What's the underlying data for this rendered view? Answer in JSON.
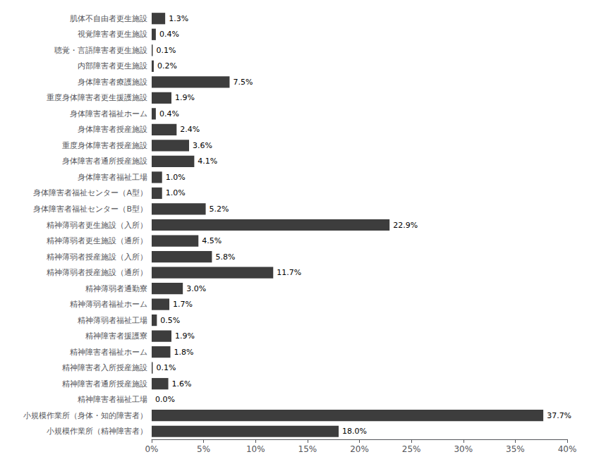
{
  "chart_data": {
    "type": "bar",
    "orientation": "horizontal",
    "categories": [
      "肌体不自由者更生施設",
      "視覚障害者更生施設",
      "聴覚・言語障害者更生施設",
      "内部障害者更生施設",
      "身体障害者療護施設",
      "重度身体障害者更生援護施設",
      "身体障害者福祉ホーム",
      "身体障害者授産施設",
      "重度身体障害者授産施設",
      "身体障害者通所授産施設",
      "身体障害者福祉工場",
      "身体障害者福祉センター（A型）",
      "身体障害者福祉センター（B型）",
      "精神薄弱者更生施設（入所）",
      "精神薄弱者更生施設（通所）",
      "精神薄弱者授産施設（入所）",
      "精神薄弱者授産施設（通所）",
      "精神薄弱者通勤寮",
      "精神薄弱者福祉ホーム",
      "精神薄弱者福祉工場",
      "精神障害者援護寮",
      "精神障害者福祉ホーム",
      "精神障害者入所授産施設",
      "精神障害者通所授産施設",
      "精神障害者福祉工場",
      "小規模作業所（身体・知的障害者）",
      "小規模作業所（精神障害者）"
    ],
    "values": [
      1.3,
      0.4,
      0.1,
      0.2,
      7.5,
      1.9,
      0.4,
      2.4,
      3.6,
      4.1,
      1.0,
      1.0,
      5.2,
      22.9,
      4.5,
      5.8,
      11.7,
      3.0,
      1.7,
      0.5,
      1.9,
      1.8,
      0.1,
      1.6,
      0.0,
      37.7,
      18.0
    ],
    "value_labels": [
      "1.3%",
      "0.4%",
      "0.1%",
      "0.2%",
      "7.5%",
      "1.9%",
      "0.4%",
      "2.4%",
      "3.6%",
      "4.1%",
      "1.0%",
      "1.0%",
      "5.2%",
      "22.9%",
      "4.5%",
      "5.8%",
      "11.7%",
      "3.0%",
      "1.7%",
      "0.5%",
      "1.9%",
      "1.8%",
      "0.1%",
      "1.6%",
      "0.0%",
      "37.7%",
      "18.0%"
    ],
    "data_labels": true,
    "color": "#3d3d3d",
    "xlim": [
      0,
      40
    ],
    "xticks": [
      {
        "value": 0,
        "label": "0%"
      },
      {
        "value": 5,
        "label": "5%"
      },
      {
        "value": 10,
        "label": "10%"
      },
      {
        "value": 15,
        "label": "15%"
      },
      {
        "value": 20,
        "label": "20%"
      },
      {
        "value": 25,
        "label": "25%"
      },
      {
        "value": 30,
        "label": "30%"
      },
      {
        "value": 35,
        "label": "35%"
      },
      {
        "value": 40,
        "label": "40%"
      }
    ],
    "grid": false
  }
}
